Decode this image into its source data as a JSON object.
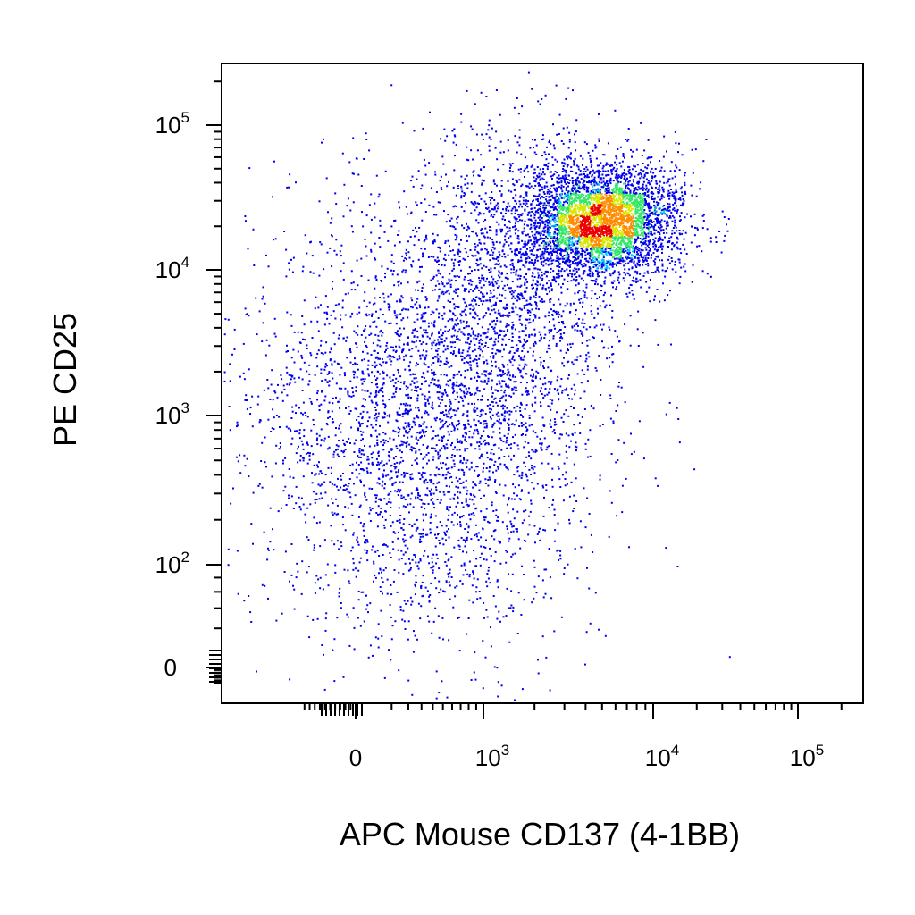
{
  "chart_data": {
    "type": "scatter",
    "title": "",
    "xlabel": "APC Mouse CD137 (4-1BB)",
    "ylabel": "PE CD25",
    "xscale": "biexponential",
    "yscale": "biexponential",
    "xlim": [
      -400,
      200000
    ],
    "ylim": [
      -150,
      250000
    ],
    "x_ticks": [
      {
        "value": 0,
        "base": "0",
        "exp": ""
      },
      {
        "value": 1000,
        "base": "10",
        "exp": "3"
      },
      {
        "value": 10000,
        "base": "10",
        "exp": "4"
      },
      {
        "value": 100000,
        "base": "10",
        "exp": "5"
      }
    ],
    "y_ticks": [
      {
        "value": 0,
        "base": "0",
        "exp": ""
      },
      {
        "value": 100,
        "base": "10",
        "exp": "2"
      },
      {
        "value": 1000,
        "base": "10",
        "exp": "3"
      },
      {
        "value": 10000,
        "base": "10",
        "exp": "4"
      },
      {
        "value": 100000,
        "base": "10",
        "exp": "5"
      }
    ],
    "density_colors": [
      "#0000ee",
      "#00c8ff",
      "#33e866",
      "#d8e800",
      "#ff8c00",
      "#ee0000"
    ],
    "populations": [
      {
        "center_x": 300,
        "center_y": 900,
        "spread_x": 1.0,
        "spread_y": 0.75,
        "weight": 0.38
      },
      {
        "center_x": 5000,
        "center_y": 22000,
        "spread_x": 0.45,
        "spread_y": 0.2,
        "weight": 0.45
      },
      {
        "center_x": 1500,
        "center_y": 8000,
        "spread_x": 0.6,
        "spread_y": 0.55,
        "weight": 0.17
      }
    ],
    "grid": false,
    "legend": "none"
  }
}
